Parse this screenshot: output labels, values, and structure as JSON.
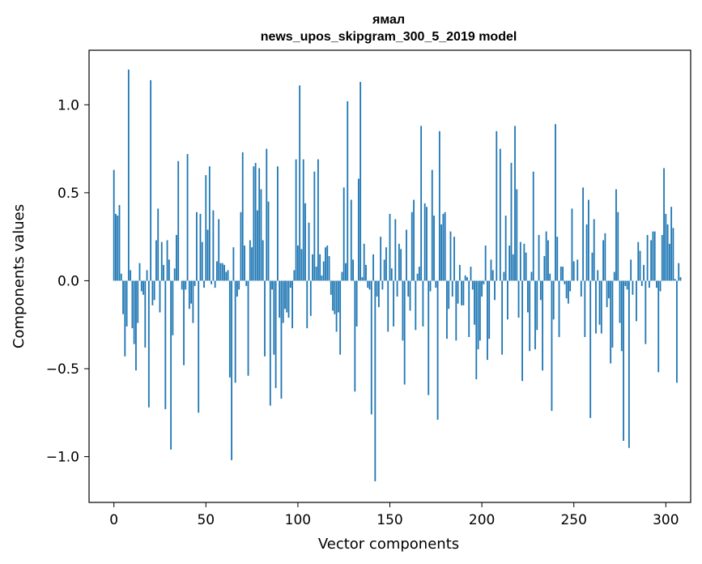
{
  "chart_data": {
    "type": "bar",
    "title": "ямал",
    "subtitle": "news_upos_skipgram_300_5_2019 model",
    "xlabel": "Vector components",
    "ylabel": "Components values",
    "xlim": [
      -13.5,
      313.5
    ],
    "ylim": [
      -1.26,
      1.31
    ],
    "xticks": [
      0,
      50,
      100,
      150,
      200,
      250,
      300
    ],
    "xtick_labels": [
      "0",
      "50",
      "100",
      "150",
      "200",
      "250",
      "300"
    ],
    "yticks": [
      -1.0,
      -0.5,
      0.0,
      0.5,
      1.0
    ],
    "ytick_labels": [
      "−1.0",
      "−0.5",
      "0.0",
      "0.5",
      "1.0"
    ],
    "bar_color": "#1f77b4",
    "values": [
      0.63,
      0.38,
      0.37,
      0.43,
      0.04,
      -0.19,
      -0.43,
      -0.26,
      1.2,
      0.06,
      -0.27,
      -0.36,
      -0.51,
      -0.24,
      0.1,
      -0.06,
      -0.08,
      -0.38,
      0.06,
      -0.72,
      1.14,
      -0.14,
      -0.11,
      0.23,
      0.41,
      -0.18,
      0.22,
      0.09,
      -0.73,
      0.23,
      0.12,
      -0.96,
      -0.31,
      0.07,
      0.26,
      0.68,
      0.0,
      -0.05,
      -0.48,
      -0.05,
      0.72,
      -0.16,
      -0.13,
      -0.24,
      -0.03,
      0.39,
      -0.75,
      0.38,
      0.22,
      -0.04,
      0.6,
      0.29,
      0.65,
      -0.02,
      0.4,
      -0.04,
      0.11,
      0.35,
      0.1,
      0.1,
      0.09,
      0.05,
      0.06,
      -0.55,
      -1.02,
      0.19,
      -0.58,
      -0.09,
      -0.05,
      0.39,
      0.73,
      0.2,
      -0.03,
      -0.54,
      0.23,
      0.19,
      0.65,
      0.67,
      0.4,
      0.64,
      0.52,
      0.23,
      -0.43,
      0.75,
      0.45,
      -0.71,
      -0.05,
      -0.42,
      -0.61,
      0.65,
      -0.21,
      -0.67,
      -0.24,
      -0.16,
      -0.18,
      -0.21,
      -0.04,
      -0.27,
      0.06,
      0.69,
      0.2,
      1.11,
      0.18,
      0.69,
      0.44,
      -0.27,
      0.33,
      -0.2,
      0.15,
      0.62,
      0.08,
      0.69,
      0.15,
      0.03,
      0.11,
      0.19,
      0.2,
      0.14,
      -0.08,
      -0.17,
      -0.19,
      -0.29,
      -0.18,
      -0.42,
      0.05,
      0.53,
      0.1,
      1.02,
      0.0,
      0.46,
      0.12,
      -0.63,
      -0.26,
      0.58,
      1.13,
      0.02,
      0.21,
      0.09,
      -0.04,
      -0.05,
      -0.76,
      0.15,
      -1.14,
      -0.09,
      -0.15,
      0.25,
      -0.05,
      0.12,
      0.19,
      -0.29,
      0.38,
      0.07,
      -0.26,
      0.35,
      -0.09,
      0.21,
      0.18,
      -0.34,
      -0.59,
      0.29,
      -0.09,
      -0.17,
      0.39,
      0.46,
      -0.28,
      0.04,
      0.08,
      0.88,
      -0.26,
      0.44,
      0.42,
      -0.65,
      -0.06,
      0.63,
      0.37,
      -0.04,
      -0.79,
      0.85,
      0.32,
      0.38,
      0.39,
      -0.33,
      -0.16,
      0.28,
      -0.09,
      0.25,
      -0.34,
      -0.13,
      0.09,
      -0.14,
      -0.14,
      0.03,
      0.02,
      -0.32,
      0.08,
      -0.05,
      -0.25,
      -0.56,
      -0.39,
      -0.34,
      -0.09,
      -0.02,
      0.2,
      -0.45,
      -0.33,
      0.12,
      0.06,
      -0.11,
      0.85,
      0.0,
      0.75,
      -0.42,
      0.05,
      0.37,
      -0.22,
      0.2,
      0.67,
      0.15,
      0.88,
      0.52,
      -0.21,
      0.22,
      -0.57,
      0.21,
      0.16,
      -0.18,
      -0.4,
      0.05,
      0.62,
      -0.39,
      -0.28,
      0.26,
      -0.11,
      -0.51,
      0.14,
      0.28,
      0.23,
      0.04,
      -0.74,
      -0.22,
      0.89,
      0.25,
      -0.32,
      0.08,
      0.08,
      -0.02,
      -0.1,
      -0.13,
      -0.06,
      0.41,
      0.11,
      0.0,
      0.12,
      0.0,
      -0.09,
      0.53,
      -0.32,
      0.32,
      0.46,
      -0.78,
      0.16,
      0.35,
      -0.3,
      0.06,
      -0.25,
      -0.3,
      0.23,
      0.27,
      -0.15,
      -0.1,
      -0.47,
      -0.38,
      0.05,
      0.52,
      0.39,
      -0.24,
      -0.4,
      -0.91,
      -0.03,
      -0.05,
      -0.95,
      0.12,
      -0.08,
      0.0,
      -0.23,
      0.22,
      0.17,
      -0.03,
      0.09,
      -0.36,
      0.26,
      -0.04,
      0.23,
      0.28,
      0.28,
      -0.04,
      -0.52,
      -0.06,
      0.26,
      0.64,
      0.38,
      0.32,
      0.21,
      0.42,
      0.3,
      0.01,
      -0.58,
      0.1,
      0.02
    ]
  }
}
